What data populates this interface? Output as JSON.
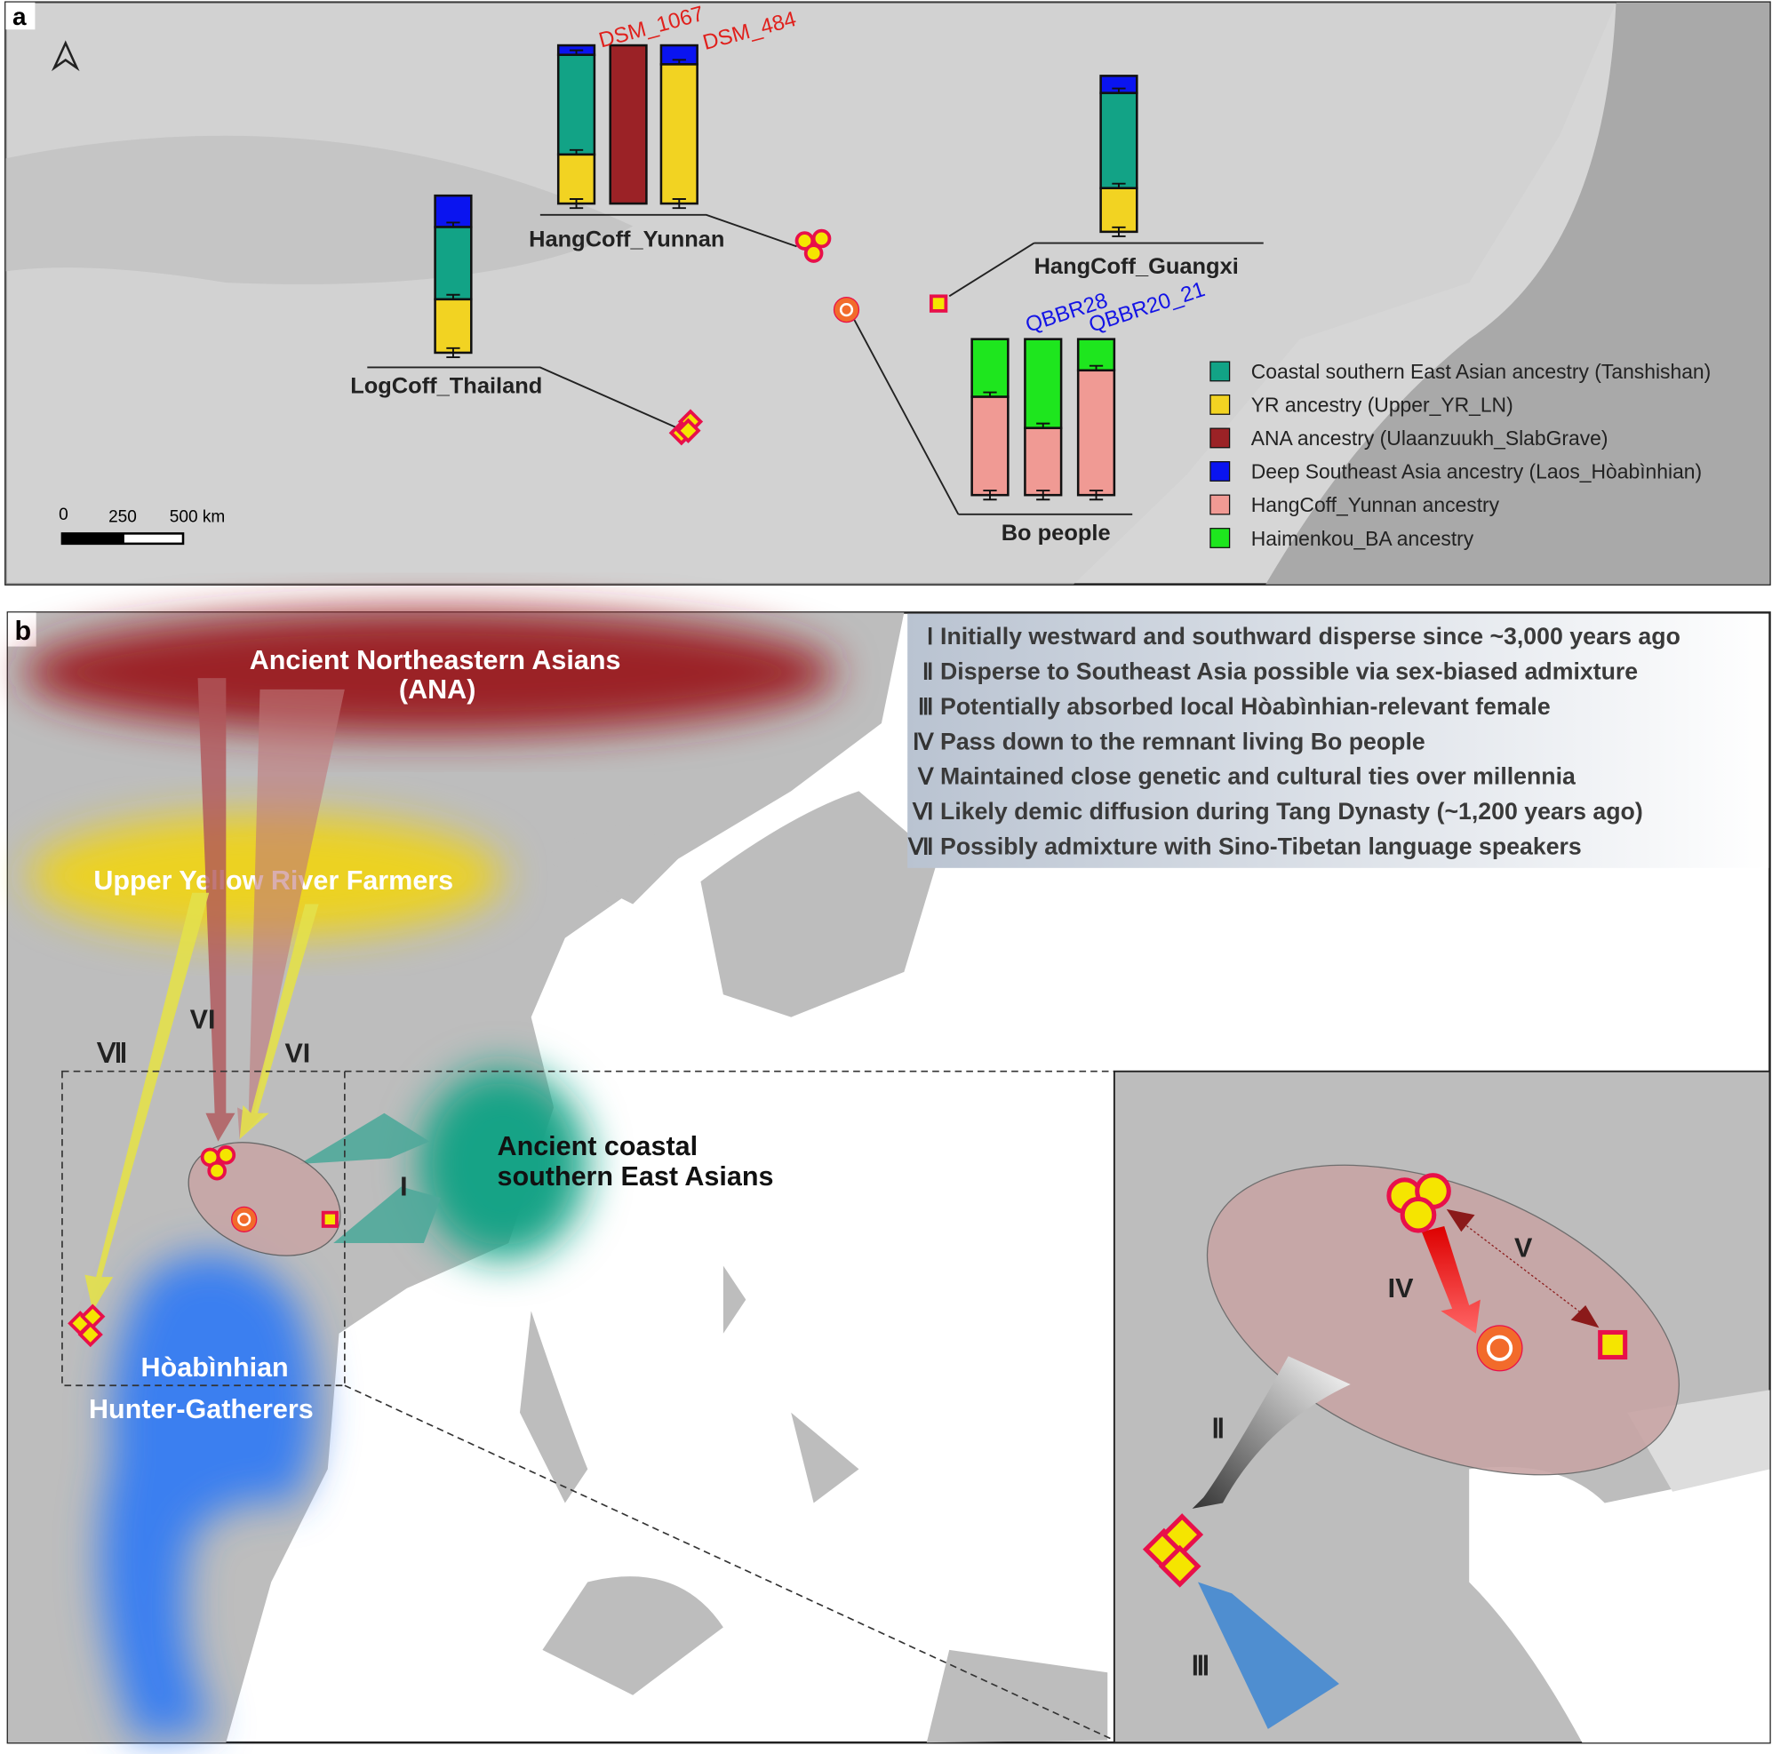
{
  "panel_a": {
    "label": "a",
    "group_labels": {
      "yunnan": "HangCoff_Yunnan",
      "guangxi": "HangCoff_Guangxi",
      "thailand": "LogCoff_Thailand",
      "bo": "Bo people"
    },
    "sample_labels": {
      "dsm1067": "DSM_1067",
      "dsm484": "DSM_484",
      "qbbr28": "QBBR28",
      "qbbr20": "QBBR20_21"
    },
    "scale_bar": {
      "t0": "0",
      "t1": "250",
      "t2": "500 km"
    },
    "legend": [
      {
        "label": "Coastal southern East Asian ancestry (Tanshishan)",
        "color": "#12a386"
      },
      {
        "label": "YR ancestry (Upper_YR_LN)",
        "color": "#f2d322"
      },
      {
        "label": "ANA ancestry (Ulaanzuukh_SlabGrave)",
        "color": "#9b2226"
      },
      {
        "label": "Deep Southeast Asia ancestry (Laos_Hòabìnhian)",
        "color": "#0a14f0"
      },
      {
        "label": "HangCoff_Yunnan ancestry",
        "color": "#f09a94"
      },
      {
        "label": "Haimenkou_BA ancestry",
        "color": "#1ee61e"
      }
    ],
    "chart_data": {
      "type": "bar",
      "stacked": true,
      "ylim": [
        0,
        1
      ],
      "bars": [
        {
          "group": "HangCoff_Yunnan",
          "components": {
            "Deep Southeast Asia": 0.06,
            "Coastal southern East Asian": 0.63,
            "YR": 0.31
          }
        },
        {
          "group": "HangCoff_Yunnan",
          "sample": "DSM_1067",
          "components": {
            "ANA": 1.0
          }
        },
        {
          "group": "HangCoff_Yunnan",
          "sample": "DSM_484",
          "components": {
            "Deep Southeast Asia": 0.12,
            "YR": 0.88
          }
        },
        {
          "group": "HangCoff_Guangxi",
          "components": {
            "Deep Southeast Asia": 0.11,
            "Coastal southern East Asian": 0.61,
            "YR": 0.28
          }
        },
        {
          "group": "LogCoff_Thailand",
          "components": {
            "Deep Southeast Asia": 0.2,
            "Coastal southern East Asian": 0.46,
            "YR": 0.34
          }
        },
        {
          "group": "Bo people",
          "components": {
            "Haimenkou_BA": 0.37,
            "HangCoff_Yunnan": 0.63
          }
        },
        {
          "group": "Bo people",
          "sample": "QBBR28",
          "components": {
            "Haimenkou_BA": 0.57,
            "HangCoff_Yunnan": 0.43
          }
        },
        {
          "group": "Bo people",
          "sample": "QBBR20_21",
          "components": {
            "Haimenkou_BA": 0.2,
            "HangCoff_Yunnan": 0.8
          }
        }
      ]
    }
  },
  "panel_b": {
    "label": "b",
    "regions": {
      "ana": "Ancient Northeastern Asians",
      "ana_abbr": "(ANA)",
      "yr": "Upper Yellow River Farmers",
      "coastal1": "Ancient coastal",
      "coastal2": "southern East Asians",
      "hoa1": "Hòabìnhian",
      "hoa2": "Hunter-Gatherers"
    },
    "arrow_labels": {
      "vi1": "VI",
      "vi2": "VI",
      "vii": "Ⅶ",
      "i": "I",
      "ii": "Ⅱ",
      "iii": "Ⅲ",
      "iv": "IV",
      "v": "V"
    },
    "notes": [
      {
        "num": "Ⅰ",
        "text": "Initially westward and southward disperse since ~3,000 years ago"
      },
      {
        "num": "Ⅱ",
        "text": "Disperse to Southeast Asia possible via sex-biased admixture"
      },
      {
        "num": "Ⅲ",
        "text": "Potentially absorbed local Hòabìnhian-relevant female"
      },
      {
        "num": "Ⅳ",
        "text": "Pass down to the remnant living Bo people"
      },
      {
        "num": "Ⅴ",
        "text": "Maintained close genetic and cultural ties over millennia"
      },
      {
        "num": "Ⅵ",
        "text": "Likely demic diffusion during Tang Dynasty (~1,200 years ago)"
      },
      {
        "num": "Ⅶ",
        "text": "Possibly admixture with Sino-Tibetan language speakers"
      }
    ]
  }
}
